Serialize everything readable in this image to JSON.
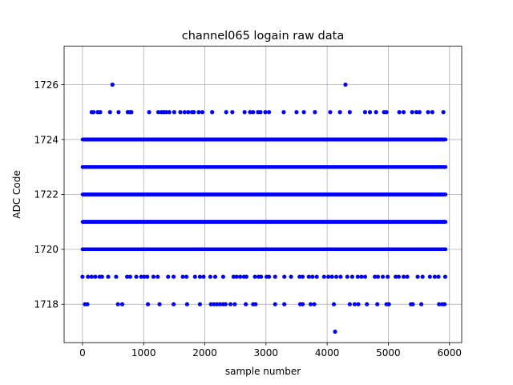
{
  "chart_data": {
    "type": "scatter",
    "title": "channel065 logain raw data",
    "xlabel": "sample number",
    "ylabel": "ADC Code",
    "xlim": [
      -300,
      6200
    ],
    "ylim": [
      1716.6,
      1727.4
    ],
    "xticks": [
      0,
      1000,
      2000,
      3000,
      4000,
      5000,
      6000
    ],
    "yticks": [
      1718,
      1720,
      1722,
      1724,
      1726
    ],
    "xtick_labels": [
      "0",
      "1000",
      "2000",
      "3000",
      "4000",
      "5000",
      "6000"
    ],
    "ytick_labels": [
      "1718",
      "1720",
      "1722",
      "1724",
      "1726"
    ],
    "grid": true,
    "marker_color": "#0000ff",
    "sample_count": 5940,
    "dense_levels": [
      1720,
      1721,
      1722,
      1723,
      1724
    ],
    "sparse_points": {
      "1726": [
        490,
        4300
      ],
      "1725": [
        150,
        180,
        250,
        290,
        450,
        590,
        740,
        770,
        800,
        1090,
        1240,
        1290,
        1330,
        1370,
        1420,
        1500,
        1600,
        1670,
        1730,
        1790,
        1820,
        1900,
        1960,
        2120,
        2350,
        2450,
        2650,
        2740,
        2790,
        2870,
        2910,
        2990,
        3050,
        3290,
        3500,
        3620,
        3800,
        4050,
        4210,
        4370,
        4620,
        4700,
        4800,
        4930,
        4970,
        5180,
        5250,
        5390,
        5460,
        5510,
        5650,
        5720,
        5900
      ],
      "1719": [
        0,
        90,
        150,
        210,
        280,
        320,
        420,
        550,
        730,
        780,
        880,
        960,
        1010,
        1060,
        1160,
        1230,
        1400,
        1490,
        1640,
        1700,
        1840,
        1920,
        1980,
        2090,
        2170,
        2300,
        2470,
        2520,
        2580,
        2640,
        2680,
        2820,
        2880,
        2920,
        3010,
        3050,
        3150,
        3300,
        3410,
        3550,
        3600,
        3700,
        3760,
        3830,
        3950,
        4020,
        4080,
        4150,
        4220,
        4330,
        4410,
        4500,
        4560,
        4620,
        4780,
        4830,
        4910,
        4990,
        5120,
        5170,
        5250,
        5310,
        5480,
        5560,
        5680,
        5760,
        5820,
        5930
      ],
      "1718": [
        40,
        80,
        580,
        650,
        1070,
        1260,
        1490,
        1710,
        1920,
        2100,
        2150,
        2200,
        2250,
        2300,
        2340,
        2420,
        2490,
        2670,
        2790,
        2830,
        3150,
        3300,
        3560,
        3600,
        3730,
        3790,
        4110,
        4370,
        4450,
        4510,
        4650,
        4820,
        4970,
        5010,
        5370,
        5400,
        5540,
        5830,
        5880,
        5920
      ],
      "1717": [
        4130
      ]
    }
  }
}
